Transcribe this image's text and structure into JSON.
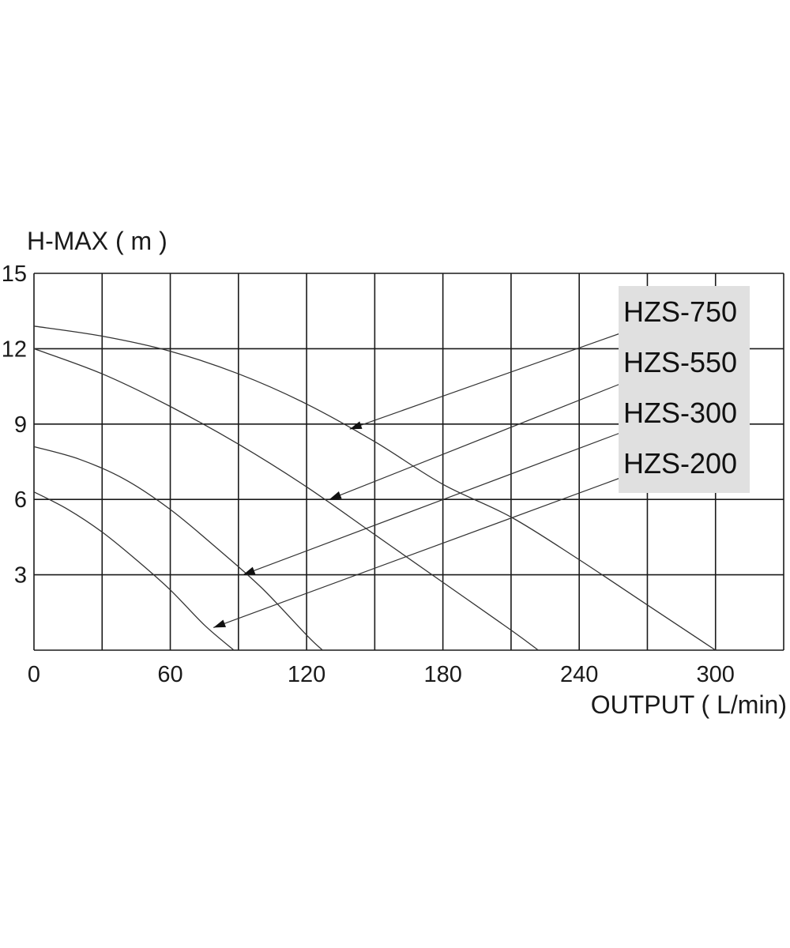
{
  "chart_data": {
    "type": "line",
    "ylabel": "H-MAX ( m )",
    "xlabel": "OUTPUT ( L/min)",
    "xlim": [
      0,
      330
    ],
    "ylim": [
      0,
      15
    ],
    "x_ticks": [
      0,
      60,
      120,
      180,
      240,
      300
    ],
    "y_ticks": [
      3,
      6,
      9,
      12,
      15
    ],
    "x_gridlines": [
      0,
      30,
      60,
      90,
      120,
      150,
      180,
      210,
      240,
      270,
      300,
      330
    ],
    "y_gridlines": [
      0,
      3,
      6,
      9,
      12,
      15
    ],
    "grid": true,
    "legend_position": "top-right",
    "series": [
      {
        "name": "HZS-750",
        "x": [
          0,
          30,
          60,
          90,
          120,
          150,
          180,
          210,
          240,
          270,
          300
        ],
        "y": [
          12.9,
          12.5,
          11.9,
          11.0,
          9.8,
          8.3,
          6.6,
          5.3,
          3.6,
          1.8,
          0
        ]
      },
      {
        "name": "HZS-550",
        "x": [
          0,
          30,
          60,
          90,
          120,
          150,
          180,
          210,
          222
        ],
        "y": [
          12.0,
          11.0,
          9.7,
          8.2,
          6.5,
          4.6,
          2.7,
          0.8,
          0
        ]
      },
      {
        "name": "HZS-300",
        "x": [
          0,
          20,
          40,
          60,
          80,
          100,
          120,
          127
        ],
        "y": [
          8.1,
          7.6,
          6.8,
          5.6,
          4.1,
          2.5,
          0.6,
          0
        ]
      },
      {
        "name": "HZS-200",
        "x": [
          0,
          15,
          30,
          45,
          60,
          75,
          88
        ],
        "y": [
          6.3,
          5.6,
          4.7,
          3.6,
          2.4,
          1.0,
          0
        ]
      }
    ],
    "annotations": [
      {
        "series": "HZS-750",
        "point": [
          139,
          8.8
        ]
      },
      {
        "series": "HZS-550",
        "point": [
          130,
          6.0
        ]
      },
      {
        "series": "HZS-300",
        "point": [
          92,
          3.0
        ]
      },
      {
        "series": "HZS-200",
        "point": [
          79,
          0.9
        ]
      }
    ],
    "colors": {
      "curve": "#333333",
      "grid": "#1a1a1a",
      "legend_bg": "#e0e0e0",
      "text": "#111111"
    }
  }
}
